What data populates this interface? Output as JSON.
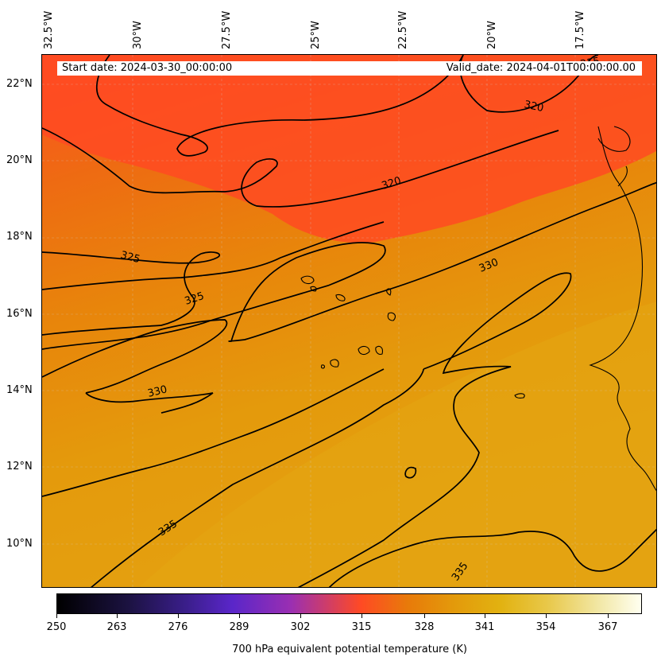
{
  "map": {
    "longitude_labels": [
      "32.5°W",
      "30°W",
      "27.5°W",
      "25°W",
      "22.5°W",
      "20°W",
      "17.5°W"
    ],
    "latitude_labels": [
      "22°N",
      "20°N",
      "18°N",
      "16°N",
      "14°N",
      "12°N",
      "10°N"
    ],
    "start_date": "Start date: 2024-03-30_00:00:00",
    "valid_date": "Valid_date: 2024-04-01T00:00:00.00",
    "contour_labels": [
      "315",
      "320",
      "320",
      "325",
      "325",
      "330",
      "330",
      "335",
      "335"
    ],
    "colors": {
      "warm_red": "#ff4a24",
      "orange": "#e87a0a",
      "amber": "#e39a0b",
      "contour": "#000000"
    }
  },
  "colorbar": {
    "ticks": [
      "250",
      "263",
      "276",
      "289",
      "302",
      "315",
      "328",
      "341",
      "354",
      "367"
    ],
    "title": "700 hPa equivalent potential temperature (K)"
  }
}
